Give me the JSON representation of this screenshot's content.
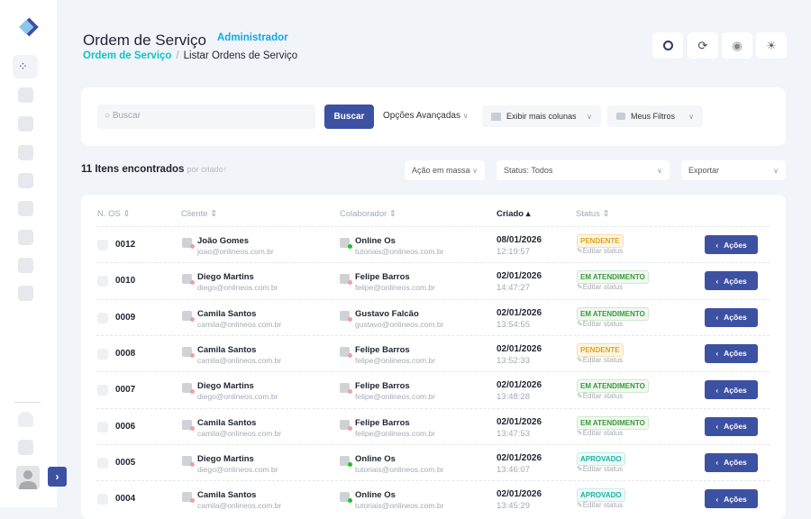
{
  "sidebar": {
    "expand_icon": "chevron-right",
    "items": [
      "dashboard",
      "edit",
      "calendar",
      "checklist",
      "schedule",
      "apps",
      "finance",
      "cart",
      "contacts"
    ],
    "bottom": [
      "bell",
      "settings"
    ]
  },
  "header": {
    "title": "Ordem de Serviço",
    "role": "Administrador",
    "breadcrumb": {
      "root": "Ordem de Serviço",
      "separator": "/",
      "current": "Listar Ordens de Serviço"
    },
    "tools": [
      "search-icon",
      "refresh-icon",
      "target-icon",
      "sun-icon"
    ]
  },
  "filters": {
    "search_placeholder": "Buscar",
    "search_button": "Buscar",
    "advanced": "Opções Avançadas",
    "columns": "Exibir mais colunas",
    "my_filters": "Meus Filtros"
  },
  "summary": {
    "count": "11 Itens encontrados",
    "sort": "por criado↑",
    "bulk": "Ação em massa",
    "status": "Status: Todos",
    "export": "Exportar"
  },
  "table": {
    "headers": [
      "N. OS",
      "Cliente",
      "Colaborador",
      "Criado",
      "Status"
    ],
    "edit_label": "Editar status",
    "action_label": "Ações",
    "rows": [
      {
        "num": "0012",
        "client": "João Gomes",
        "client_email": "joao@onlineos.com.br",
        "collab": "Online Os",
        "collab_email": "tutoriais@onlineos.com.br",
        "online": true,
        "date": "08/01/2026",
        "time": "12:19:57",
        "status": "PENDENTE"
      },
      {
        "num": "0010",
        "client": "Diego Martins",
        "client_email": "diego@onlineos.com.br",
        "collab": "Felipe Barros",
        "collab_email": "felipe@onlineos.com.br",
        "online": false,
        "date": "02/01/2026",
        "time": "14:47:27",
        "status": "EM ATENDIMENTO"
      },
      {
        "num": "0009",
        "client": "Camila Santos",
        "client_email": "camila@onlineos.com.br",
        "collab": "Gustavo Falcão",
        "collab_email": "gustavo@onlineos.com.br",
        "online": false,
        "date": "02/01/2026",
        "time": "13:54:55",
        "status": "EM ATENDIMENTO"
      },
      {
        "num": "0008",
        "client": "Camila Santos",
        "client_email": "camila@onlineos.com.br",
        "collab": "Felipe Barros",
        "collab_email": "felipe@onlineos.com.br",
        "online": false,
        "date": "02/01/2026",
        "time": "13:52:33",
        "status": "PENDENTE"
      },
      {
        "num": "0007",
        "client": "Diego Martins",
        "client_email": "diego@onlineos.com.br",
        "collab": "Felipe Barros",
        "collab_email": "felipe@onlineos.com.br",
        "online": false,
        "date": "02/01/2026",
        "time": "13:48:28",
        "status": "EM ATENDIMENTO"
      },
      {
        "num": "0006",
        "client": "Camila Santos",
        "client_email": "camila@onlineos.com.br",
        "collab": "Felipe Barros",
        "collab_email": "felipe@onlineos.com.br",
        "online": false,
        "date": "02/01/2026",
        "time": "13:47:53",
        "status": "EM ATENDIMENTO"
      },
      {
        "num": "0005",
        "client": "Diego Martins",
        "client_email": "diego@onlineos.com.br",
        "collab": "Online Os",
        "collab_email": "tutoriais@onlineos.com.br",
        "online": true,
        "date": "02/01/2026",
        "time": "13:46:07",
        "status": "APROVADO"
      },
      {
        "num": "0004",
        "client": "Camila Santos",
        "client_email": "camila@onlineos.com.br",
        "collab": "Online Os",
        "collab_email": "tutoriais@onlineos.com.br",
        "online": true,
        "date": "02/01/2026",
        "time": "13:45:29",
        "status": "APROVADO"
      }
    ]
  },
  "colors": {
    "primary": "#3d51a3",
    "accent": "#12c2c7",
    "role": "#13a7e4",
    "pendente": "#e0a21a",
    "atendimento": "#3c9a3c",
    "aprovado": "#13b5a5",
    "online": "#22c02a",
    "offline": "#f0a0a0"
  }
}
